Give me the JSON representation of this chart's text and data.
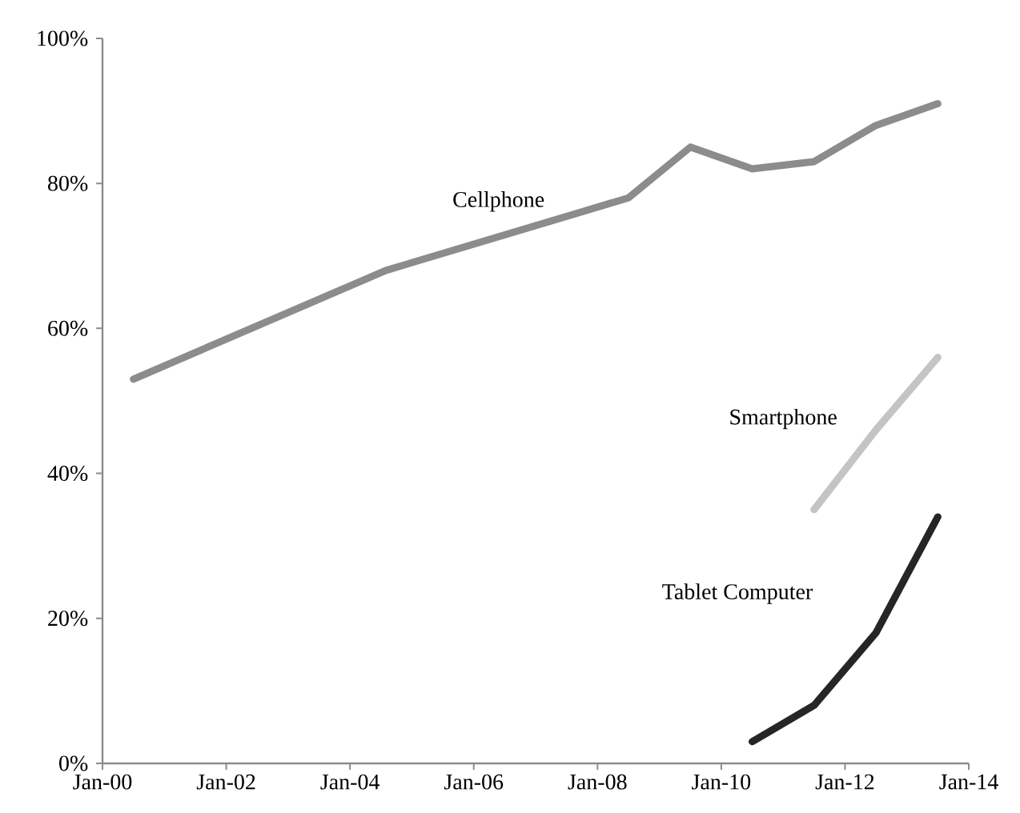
{
  "chart_data": {
    "type": "line",
    "series": [
      {
        "name": "Cellphone",
        "color": "#8c8c8c",
        "x": [
          "2000-07",
          "2004-08",
          "2008-07",
          "2009-07",
          "2010-07",
          "2011-07",
          "2012-07",
          "2013-07"
        ],
        "values": [
          53,
          68,
          78,
          85,
          82,
          83,
          88,
          91
        ]
      },
      {
        "name": "Smartphone",
        "color": "#c4c4c4",
        "x": [
          "2011-07",
          "2012-07",
          "2013-07"
        ],
        "values": [
          35,
          46,
          56
        ]
      },
      {
        "name": "Tablet Computer",
        "color": "#262626",
        "x": [
          "2010-07",
          "2011-07",
          "2012-07",
          "2013-07"
        ],
        "values": [
          3,
          8,
          18,
          34
        ]
      }
    ],
    "xlim": [
      "2000-01",
      "2014-01"
    ],
    "xticks": [
      {
        "value": "2000-01",
        "label": "Jan-00"
      },
      {
        "value": "2002-01",
        "label": "Jan-02"
      },
      {
        "value": "2004-01",
        "label": "Jan-04"
      },
      {
        "value": "2006-01",
        "label": "Jan-06"
      },
      {
        "value": "2008-01",
        "label": "Jan-08"
      },
      {
        "value": "2010-01",
        "label": "Jan-10"
      },
      {
        "value": "2012-01",
        "label": "Jan-12"
      },
      {
        "value": "2014-01",
        "label": "Jan-14"
      }
    ],
    "ylim": [
      0,
      100
    ],
    "yticks": [
      {
        "value": 0,
        "label": "0%"
      },
      {
        "value": 20,
        "label": "20%"
      },
      {
        "value": 40,
        "label": "40%"
      },
      {
        "value": 60,
        "label": "60%"
      },
      {
        "value": 80,
        "label": "80%"
      },
      {
        "value": 100,
        "label": "100%"
      }
    ],
    "grid": false,
    "legend": false,
    "marker": "none",
    "line_style": "solid"
  }
}
